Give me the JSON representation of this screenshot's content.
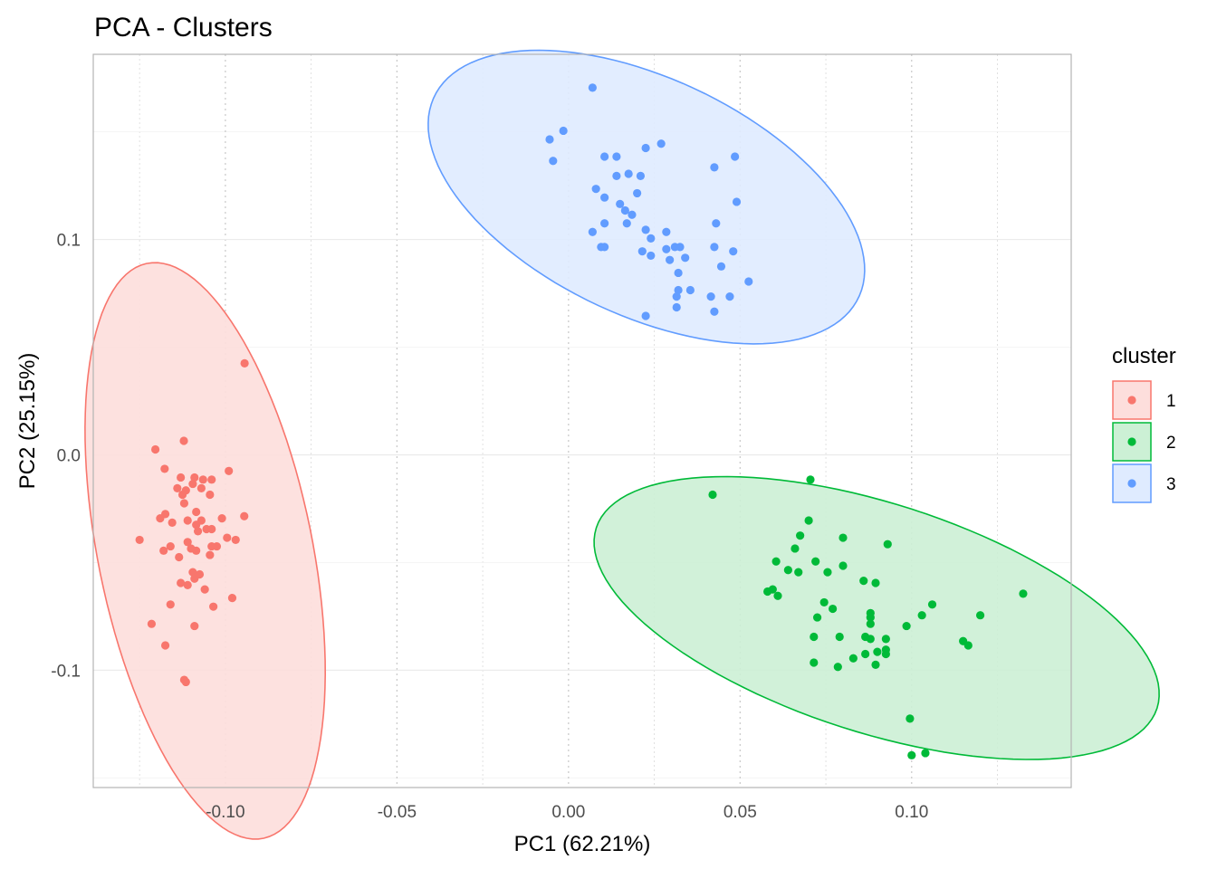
{
  "chart_data": {
    "type": "scatter",
    "title": "PCA - Clusters",
    "xlabel": "PC1 (62.21%)",
    "ylabel": "PC2 (25.15%)",
    "xlim": [
      -0.1385,
      0.1465
    ],
    "ylim": [
      -0.1545,
      0.186
    ],
    "x_ticks": [
      -0.1,
      -0.05,
      0.0,
      0.05,
      0.1
    ],
    "x_tick_labels": [
      "-0.10",
      "-0.05",
      "0.00",
      "0.05",
      "0.10"
    ],
    "y_ticks": [
      0.1,
      0.0,
      -0.1
    ],
    "y_tick_labels": [
      "0.1",
      "0.0",
      "-0.1"
    ],
    "legend": {
      "title": "cluster",
      "position": "right"
    },
    "grid": true,
    "series": [
      {
        "name": "1",
        "color": "#F8766D",
        "fill": "#FDDEDC",
        "ellipse": {
          "cx": -0.1059,
          "cy": -0.0446,
          "rx": 0.0316,
          "ry": 0.1347,
          "angle": 6.6
        },
        "points": [
          [
            -0.0944,
            0.0425
          ],
          [
            -0.1121,
            0.0065
          ],
          [
            -0.1204,
            0.0025
          ],
          [
            -0.1177,
            -0.0065
          ],
          [
            -0.113,
            -0.0105
          ],
          [
            -0.1065,
            -0.0115
          ],
          [
            -0.104,
            -0.0115
          ],
          [
            -0.099,
            -0.0075
          ],
          [
            -0.109,
            -0.0105
          ],
          [
            -0.1095,
            -0.0135
          ],
          [
            -0.107,
            -0.0155
          ],
          [
            -0.1115,
            -0.0165
          ],
          [
            -0.1125,
            -0.0185
          ],
          [
            -0.114,
            -0.0155
          ],
          [
            -0.1045,
            -0.0185
          ],
          [
            -0.112,
            -0.0225
          ],
          [
            -0.1085,
            -0.0265
          ],
          [
            -0.1175,
            -0.0275
          ],
          [
            -0.119,
            -0.0295
          ],
          [
            -0.111,
            -0.0305
          ],
          [
            -0.107,
            -0.0305
          ],
          [
            -0.1155,
            -0.0315
          ],
          [
            -0.1085,
            -0.0325
          ],
          [
            -0.1055,
            -0.0345
          ],
          [
            -0.101,
            -0.0295
          ],
          [
            -0.0945,
            -0.0285
          ],
          [
            -0.104,
            -0.0345
          ],
          [
            -0.108,
            -0.0355
          ],
          [
            -0.0995,
            -0.0385
          ],
          [
            -0.097,
            -0.0395
          ],
          [
            -0.125,
            -0.0395
          ],
          [
            -0.111,
            -0.0405
          ],
          [
            -0.116,
            -0.0425
          ],
          [
            -0.104,
            -0.0425
          ],
          [
            -0.1025,
            -0.0425
          ],
          [
            -0.11,
            -0.0435
          ],
          [
            -0.1085,
            -0.0445
          ],
          [
            -0.118,
            -0.0445
          ],
          [
            -0.1135,
            -0.0475
          ],
          [
            -0.1045,
            -0.0465
          ],
          [
            -0.1095,
            -0.0545
          ],
          [
            -0.1075,
            -0.0555
          ],
          [
            -0.109,
            -0.0575
          ],
          [
            -0.111,
            -0.0605
          ],
          [
            -0.113,
            -0.0595
          ],
          [
            -0.106,
            -0.0625
          ],
          [
            -0.098,
            -0.0665
          ],
          [
            -0.1035,
            -0.0705
          ],
          [
            -0.116,
            -0.0695
          ],
          [
            -0.1215,
            -0.0785
          ],
          [
            -0.109,
            -0.0795
          ],
          [
            -0.1175,
            -0.0885
          ],
          [
            -0.1115,
            -0.1055
          ],
          [
            -0.112,
            -0.1045
          ]
        ]
      },
      {
        "name": "2",
        "color": "#00BA38",
        "fill": "#CCF0D5",
        "ellipse": {
          "cx": 0.0898,
          "cy": -0.0758,
          "rx": 0.0933,
          "ry": 0.0489,
          "angle": -33.5
        },
        "points": [
          [
            0.042,
            -0.0185
          ],
          [
            0.0705,
            -0.0115
          ],
          [
            0.07,
            -0.0305
          ],
          [
            0.0675,
            -0.0375
          ],
          [
            0.08,
            -0.0385
          ],
          [
            0.066,
            -0.0435
          ],
          [
            0.093,
            -0.0415
          ],
          [
            0.072,
            -0.0495
          ],
          [
            0.0605,
            -0.0495
          ],
          [
            0.08,
            -0.0515
          ],
          [
            0.064,
            -0.0535
          ],
          [
            0.067,
            -0.0545
          ],
          [
            0.0755,
            -0.0545
          ],
          [
            0.086,
            -0.0585
          ],
          [
            0.0895,
            -0.0595
          ],
          [
            0.058,
            -0.0635
          ],
          [
            0.0595,
            -0.0625
          ],
          [
            0.061,
            -0.0655
          ],
          [
            0.0745,
            -0.0685
          ],
          [
            0.077,
            -0.0715
          ],
          [
            0.106,
            -0.0695
          ],
          [
            0.1325,
            -0.0645
          ],
          [
            0.0725,
            -0.0755
          ],
          [
            0.088,
            -0.0735
          ],
          [
            0.088,
            -0.0755
          ],
          [
            0.103,
            -0.0745
          ],
          [
            0.12,
            -0.0745
          ],
          [
            0.088,
            -0.0785
          ],
          [
            0.0985,
            -0.0795
          ],
          [
            0.079,
            -0.0845
          ],
          [
            0.0715,
            -0.0845
          ],
          [
            0.0865,
            -0.0845
          ],
          [
            0.088,
            -0.0855
          ],
          [
            0.0925,
            -0.0855
          ],
          [
            0.115,
            -0.0865
          ],
          [
            0.1165,
            -0.0885
          ],
          [
            0.0865,
            -0.0925
          ],
          [
            0.09,
            -0.0915
          ],
          [
            0.0925,
            -0.0905
          ],
          [
            0.0925,
            -0.0925
          ],
          [
            0.083,
            -0.0945
          ],
          [
            0.0715,
            -0.0965
          ],
          [
            0.0785,
            -0.0985
          ],
          [
            0.0895,
            -0.0975
          ],
          [
            0.0995,
            -0.1225
          ],
          [
            0.1,
            -0.1395
          ],
          [
            0.104,
            -0.1385
          ]
        ]
      },
      {
        "name": "3",
        "color": "#619CFF",
        "fill": "#DFEBFF",
        "ellipse": {
          "cx": 0.0227,
          "cy": 0.1197,
          "rx": 0.0807,
          "ry": 0.0467,
          "angle": -49.0
        },
        "points": [
          [
            0.007,
            0.1705
          ],
          [
            -0.0015,
            0.1505
          ],
          [
            -0.0055,
            0.1465
          ],
          [
            0.027,
            0.1445
          ],
          [
            0.0225,
            0.1425
          ],
          [
            0.0485,
            0.1385
          ],
          [
            0.0105,
            0.1385
          ],
          [
            0.014,
            0.1385
          ],
          [
            -0.0045,
            0.1365
          ],
          [
            0.0425,
            0.1335
          ],
          [
            0.0175,
            0.1305
          ],
          [
            0.014,
            0.1295
          ],
          [
            0.021,
            0.1295
          ],
          [
            0.008,
            0.1235
          ],
          [
            0.02,
            0.1215
          ],
          [
            0.049,
            0.1175
          ],
          [
            0.0105,
            0.1195
          ],
          [
            0.015,
            0.1165
          ],
          [
            0.0165,
            0.1135
          ],
          [
            0.0185,
            0.1115
          ],
          [
            0.017,
            0.1075
          ],
          [
            0.0105,
            0.1075
          ],
          [
            0.043,
            0.1075
          ],
          [
            0.0225,
            0.1045
          ],
          [
            0.0285,
            0.1035
          ],
          [
            0.007,
            0.1035
          ],
          [
            0.024,
            0.1005
          ],
          [
            0.031,
            0.0965
          ],
          [
            0.0325,
            0.0965
          ],
          [
            0.0285,
            0.0955
          ],
          [
            0.0425,
            0.0965
          ],
          [
            0.0215,
            0.0945
          ],
          [
            0.0095,
            0.0965
          ],
          [
            0.0105,
            0.0965
          ],
          [
            0.048,
            0.0945
          ],
          [
            0.0295,
            0.0905
          ],
          [
            0.024,
            0.0925
          ],
          [
            0.034,
            0.0915
          ],
          [
            0.032,
            0.0845
          ],
          [
            0.0445,
            0.0875
          ],
          [
            0.0525,
            0.0805
          ],
          [
            0.032,
            0.0765
          ],
          [
            0.0355,
            0.0765
          ],
          [
            0.0315,
            0.0735
          ],
          [
            0.0415,
            0.0735
          ],
          [
            0.047,
            0.0735
          ],
          [
            0.0315,
            0.0685
          ],
          [
            0.0425,
            0.0665
          ],
          [
            0.0225,
            0.0645
          ]
        ]
      }
    ]
  }
}
